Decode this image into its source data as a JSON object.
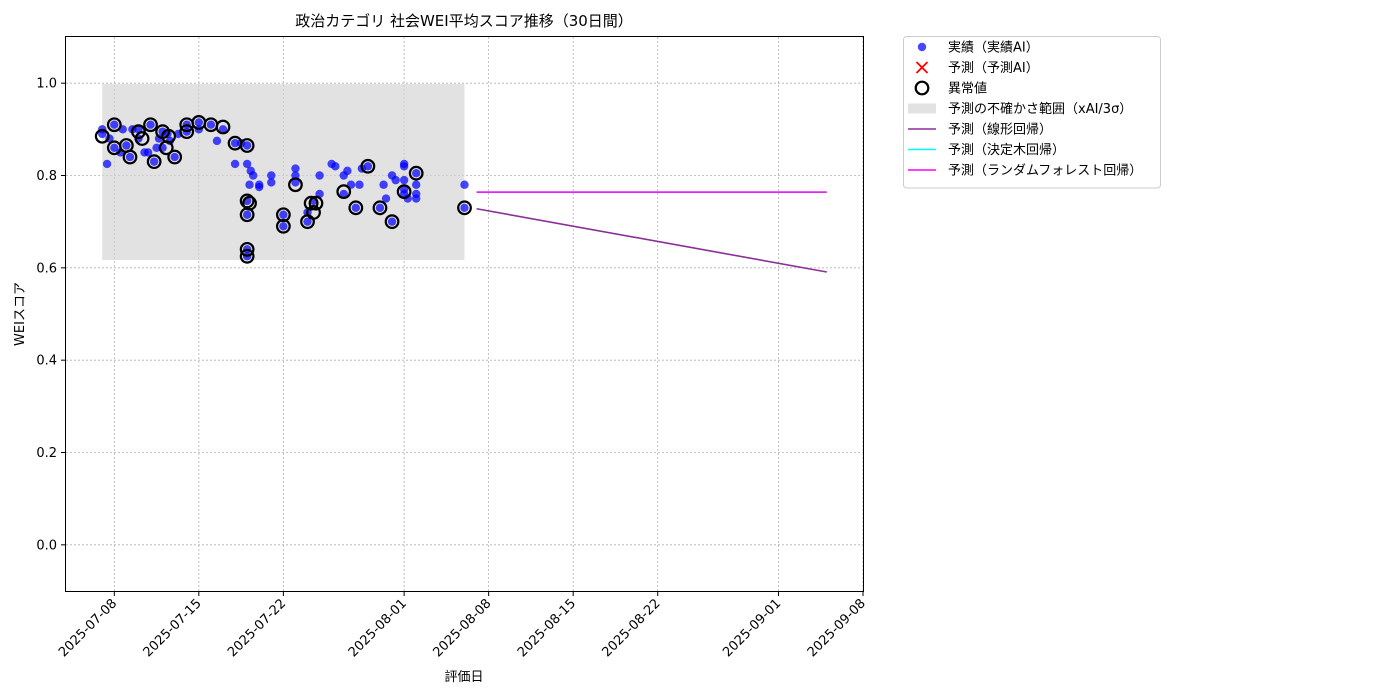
{
  "chart_data": {
    "type": "scatter",
    "title": "政治カテゴリ 社会WEI平均スコア推移（30日間）",
    "xlabel": "評価日",
    "ylabel": "WEIスコア",
    "xlim": [
      "2025-07-04",
      "2025-09-08"
    ],
    "ylim": [
      -0.1,
      1.1
    ],
    "y_ticks": [
      0.0,
      0.2,
      0.4,
      0.6,
      0.8,
      1.0
    ],
    "y_tick_labels": [
      "0.0",
      "0.2",
      "0.4",
      "0.6",
      "0.8",
      "1.0"
    ],
    "x_ticks": [
      "2025-07-08",
      "2025-07-15",
      "2025-07-22",
      "2025-08-01",
      "2025-08-08",
      "2025-08-15",
      "2025-08-22",
      "2025-09-01",
      "2025-09-08"
    ],
    "grid": true,
    "legend_position": "outside-upper-right",
    "uncertainty_band": {
      "name": "予測の不確かさ範囲（xAI/3σ）",
      "x_range": [
        "2025-07-07",
        "2025-08-06"
      ],
      "y_range": [
        0.617,
        0.998
      ],
      "color": "#d3d3d3"
    },
    "series": [
      {
        "name": "実績（実績AI）",
        "kind": "scatter",
        "color": "#0000ff",
        "points": [
          [
            "2025-07-07",
            0.89
          ],
          [
            "2025-07-07",
            0.9
          ],
          [
            "2025-07-07.4",
            0.825
          ],
          [
            "2025-07-07.6",
            0.88
          ],
          [
            "2025-07-08",
            0.91
          ],
          [
            "2025-07-08",
            0.86
          ],
          [
            "2025-07-08.5",
            0.85
          ],
          [
            "2025-07-08.7",
            0.9
          ],
          [
            "2025-07-09",
            0.865
          ],
          [
            "2025-07-09.3",
            0.84
          ],
          [
            "2025-07-09.5",
            0.9
          ],
          [
            "2025-07-10",
            0.9
          ],
          [
            "2025-07-10",
            0.88
          ],
          [
            "2025-07-10.5",
            0.85
          ],
          [
            "2025-07-10.8",
            0.85
          ],
          [
            "2025-07-11",
            0.91
          ],
          [
            "2025-07-11.3",
            0.83
          ],
          [
            "2025-07-11.5",
            0.86
          ],
          [
            "2025-07-11.7",
            0.88
          ],
          [
            "2025-07-12",
            0.895
          ],
          [
            "2025-07-12",
            0.86
          ],
          [
            "2025-07-12.4",
            0.89
          ],
          [
            "2025-07-12.6",
            0.875
          ],
          [
            "2025-07-13",
            0.84
          ],
          [
            "2025-07-13.3",
            0.89
          ],
          [
            "2025-07-14",
            0.91
          ],
          [
            "2025-07-14",
            0.895
          ],
          [
            "2025-07-15",
            0.915
          ],
          [
            "2025-07-15",
            0.9
          ],
          [
            "2025-07-16",
            0.91
          ],
          [
            "2025-07-16.5",
            0.875
          ],
          [
            "2025-07-17",
            0.9
          ],
          [
            "2025-07-18",
            0.87
          ],
          [
            "2025-07-18",
            0.825
          ],
          [
            "2025-07-18.5",
            0.87
          ],
          [
            "2025-07-19",
            0.825
          ],
          [
            "2025-07-19",
            0.865
          ],
          [
            "2025-07-19",
            0.745
          ],
          [
            "2025-07-19",
            0.715
          ],
          [
            "2025-07-19",
            0.64
          ],
          [
            "2025-07-19",
            0.625
          ],
          [
            "2025-07-19.2",
            0.78
          ],
          [
            "2025-07-19.3",
            0.81
          ],
          [
            "2025-07-19.5",
            0.8
          ],
          [
            "2025-07-20",
            0.78
          ],
          [
            "2025-07-20",
            0.775
          ],
          [
            "2025-07-21",
            0.8
          ],
          [
            "2025-07-21",
            0.785
          ],
          [
            "2025-07-22",
            0.715
          ],
          [
            "2025-07-22",
            0.69
          ],
          [
            "2025-07-23",
            0.815
          ],
          [
            "2025-07-23",
            0.8
          ],
          [
            "2025-07-23",
            0.785
          ],
          [
            "2025-07-24",
            0.7
          ],
          [
            "2025-07-24",
            0.72
          ],
          [
            "2025-07-24.5",
            0.745
          ],
          [
            "2025-07-25",
            0.76
          ],
          [
            "2025-07-25",
            0.8
          ],
          [
            "2025-07-26",
            0.825
          ],
          [
            "2025-07-26.3",
            0.82
          ],
          [
            "2025-07-27",
            0.8
          ],
          [
            "2025-07-27",
            0.76
          ],
          [
            "2025-07-27.3",
            0.81
          ],
          [
            "2025-07-27.6",
            0.78
          ],
          [
            "2025-07-28",
            0.73
          ],
          [
            "2025-07-28.3",
            0.78
          ],
          [
            "2025-07-28.5",
            0.815
          ],
          [
            "2025-07-29",
            0.82
          ],
          [
            "2025-07-30",
            0.73
          ],
          [
            "2025-07-30.3",
            0.78
          ],
          [
            "2025-07-30.5",
            0.75
          ],
          [
            "2025-07-31",
            0.8
          ],
          [
            "2025-07-31",
            0.7
          ],
          [
            "2025-07-31.3",
            0.79
          ],
          [
            "2025-08-01",
            0.825
          ],
          [
            "2025-08-01",
            0.82
          ],
          [
            "2025-08-01",
            0.79
          ],
          [
            "2025-08-01",
            0.77
          ],
          [
            "2025-08-01",
            0.76
          ],
          [
            "2025-08-01.3",
            0.75
          ],
          [
            "2025-08-02",
            0.805
          ],
          [
            "2025-08-02",
            0.78
          ],
          [
            "2025-08-02",
            0.76
          ],
          [
            "2025-08-02",
            0.75
          ],
          [
            "2025-08-06",
            0.78
          ],
          [
            "2025-08-06",
            0.73
          ]
        ]
      },
      {
        "name": "予測（予測AI）",
        "kind": "scatter",
        "marker": "x",
        "color": "#ff0000",
        "points": []
      },
      {
        "name": "異常値",
        "kind": "scatter",
        "marker": "open-circle",
        "color": "#000000",
        "points": [
          [
            "2025-07-07",
            0.885
          ],
          [
            "2025-07-08",
            0.91
          ],
          [
            "2025-07-08",
            0.86
          ],
          [
            "2025-07-09",
            0.865
          ],
          [
            "2025-07-09.3",
            0.84
          ],
          [
            "2025-07-10",
            0.895
          ],
          [
            "2025-07-10.3",
            0.88
          ],
          [
            "2025-07-11",
            0.91
          ],
          [
            "2025-07-11.3",
            0.83
          ],
          [
            "2025-07-12",
            0.895
          ],
          [
            "2025-07-12.3",
            0.86
          ],
          [
            "2025-07-12.5",
            0.885
          ],
          [
            "2025-07-13",
            0.84
          ],
          [
            "2025-07-14",
            0.91
          ],
          [
            "2025-07-14",
            0.895
          ],
          [
            "2025-07-15",
            0.915
          ],
          [
            "2025-07-16",
            0.91
          ],
          [
            "2025-07-17",
            0.905
          ],
          [
            "2025-07-18",
            0.87
          ],
          [
            "2025-07-19",
            0.865
          ],
          [
            "2025-07-19",
            0.745
          ],
          [
            "2025-07-19.2",
            0.74
          ],
          [
            "2025-07-19",
            0.715
          ],
          [
            "2025-07-19",
            0.64
          ],
          [
            "2025-07-19",
            0.625
          ],
          [
            "2025-07-22",
            0.715
          ],
          [
            "2025-07-22",
            0.69
          ],
          [
            "2025-07-23",
            0.78
          ],
          [
            "2025-07-24",
            0.7
          ],
          [
            "2025-07-24.3",
            0.74
          ],
          [
            "2025-07-24.5",
            0.72
          ],
          [
            "2025-07-24.7",
            0.74
          ],
          [
            "2025-07-27",
            0.765
          ],
          [
            "2025-07-28",
            0.73
          ],
          [
            "2025-07-29",
            0.82
          ],
          [
            "2025-07-30",
            0.73
          ],
          [
            "2025-07-31",
            0.7
          ],
          [
            "2025-08-01",
            0.765
          ],
          [
            "2025-08-02",
            0.805
          ],
          [
            "2025-08-06",
            0.73
          ]
        ]
      },
      {
        "name": "予測（線形回帰）",
        "kind": "line",
        "color": "#8b2f97",
        "points": [
          [
            "2025-08-07",
            0.728
          ],
          [
            "2025-09-05",
            0.591
          ]
        ]
      },
      {
        "name": "予測（決定木回帰）",
        "kind": "line",
        "color": "#00ffff",
        "points": [
          [
            "2025-08-07",
            0.764
          ],
          [
            "2025-09-05",
            0.764
          ]
        ]
      },
      {
        "name": "予測（ランダムフォレスト回帰）",
        "kind": "line",
        "color": "#ff00ff",
        "points": [
          [
            "2025-08-07",
            0.764
          ],
          [
            "2025-09-05",
            0.764
          ]
        ]
      }
    ]
  }
}
